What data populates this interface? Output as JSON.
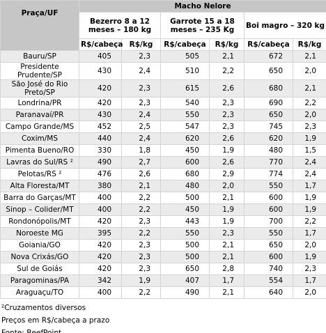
{
  "header": {
    "place": "Praça/UF",
    "main": "Macho Nelore",
    "groups": [
      "Bezerro 8 a 12 meses – 180 kg",
      "Garrote 15 a 18 meses – 235 Kg",
      "Boi magro – 320 kg"
    ],
    "units": [
      "R$/cabeça",
      "R$/kg",
      "R$/cabeça",
      "R$/kg",
      "R$/cabeça",
      "R$/kg"
    ]
  },
  "table": {
    "rows": [
      [
        "Bauru/SP",
        "405",
        "2,3",
        "505",
        "2,1",
        "672",
        "2,1"
      ],
      [
        "Presidente Prudente/SP",
        "430",
        "2,4",
        "510",
        "2,2",
        "650",
        "2,0"
      ],
      [
        "São José do Rio Preto/SP",
        "420",
        "2,3",
        "615",
        "2,6",
        "680",
        "2,1"
      ],
      [
        "Londrina/PR",
        "420",
        "2,3",
        "540",
        "2,3",
        "690",
        "2,2"
      ],
      [
        "Paranavaí/PR",
        "430",
        "2,4",
        "550",
        "2,3",
        "650",
        "2,0"
      ],
      [
        "Campo Grande/MS",
        "452",
        "2,5",
        "547",
        "2,3",
        "745",
        "2,3"
      ],
      [
        "Coxim/MS",
        "440",
        "2,4",
        "620",
        "2,6",
        "620",
        "1,9"
      ],
      [
        "Pimenta Bueno/RO",
        "330",
        "1,8",
        "450",
        "1,9",
        "480",
        "1,5"
      ],
      [
        "Lavras do Sul/RS ²",
        "490",
        "2,7",
        "600",
        "2,6",
        "770",
        "2,4"
      ],
      [
        "Pelotas/RS ²",
        "476",
        "2,6",
        "680",
        "2,9",
        "774",
        "2,4"
      ],
      [
        "Alta Floresta/MT",
        "380",
        "2,1",
        "480",
        "2,0",
        "550",
        "1,7"
      ],
      [
        "Barra do Garças/MT",
        "400",
        "2,2",
        "500",
        "2,1",
        "600",
        "1,9"
      ],
      [
        "Sinop – Colider/MT",
        "400",
        "2,2",
        "450",
        "1,9",
        "600",
        "1,9"
      ],
      [
        "Rondonópolis/MT",
        "420",
        "2,3",
        "443",
        "1,9",
        "700",
        "2,2"
      ],
      [
        "Noroeste MG",
        "395",
        "2,2",
        "550",
        "2,3",
        "550",
        "1,7"
      ],
      [
        "Goiania/GO",
        "420",
        "2,3",
        "500",
        "2,1",
        "650",
        "2,0"
      ],
      [
        "Nova Crixás/GO",
        "420",
        "2,3",
        "500",
        "2,1",
        "600",
        "1,9"
      ],
      [
        "Sul de Goiás",
        "420",
        "2,3",
        "650",
        "2,8",
        "740",
        "2,3"
      ],
      [
        "Paragominas/PA",
        "342",
        "1,9",
        "407",
        "1,7",
        "554",
        "1,7"
      ],
      [
        "Araguaçu/TO",
        "400",
        "2,2",
        "490",
        "2,1",
        "640",
        "2,0"
      ]
    ]
  },
  "footnotes": [
    "²Cruzamentos diversos",
    "Preços em R$/cabeça a prazo",
    "Fonte: BeefPoint"
  ]
}
